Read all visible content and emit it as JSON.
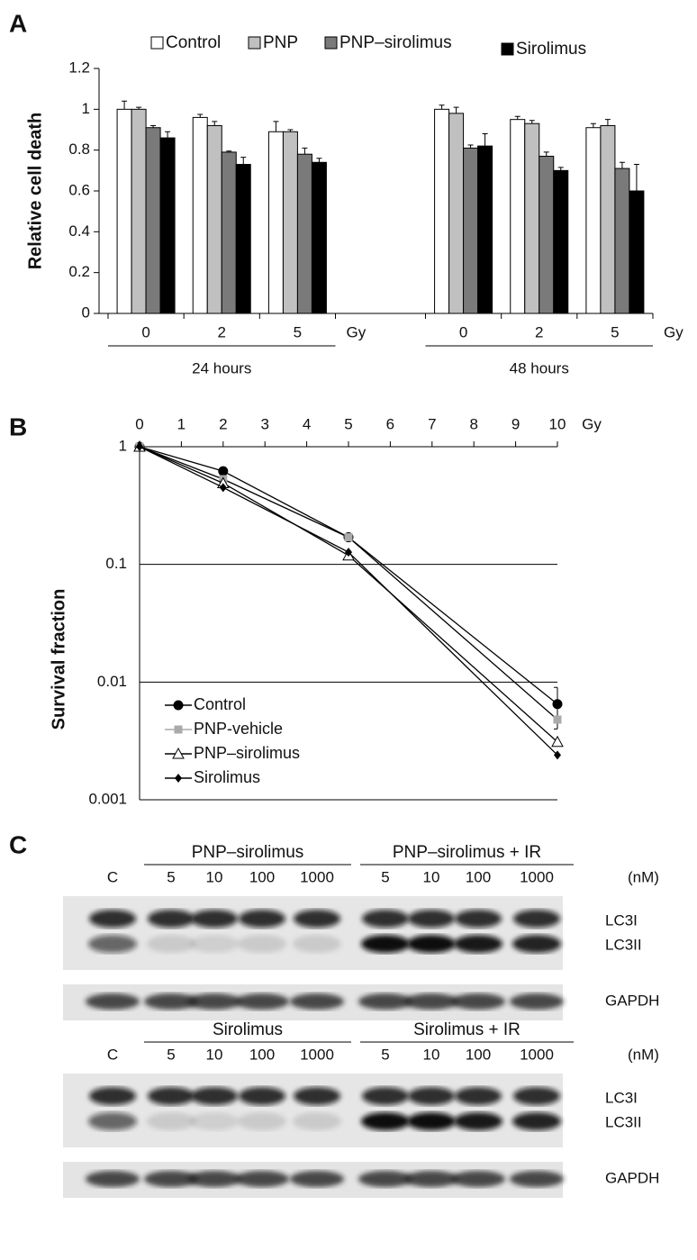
{
  "panel_labels": [
    "A",
    "B",
    "C"
  ],
  "chart_data": [
    {
      "type": "bar",
      "y_label": "Relative cell death",
      "categories": [
        "0",
        "2",
        "5",
        "0",
        "2",
        "5"
      ],
      "x_unit": "Gy",
      "groups": [
        "24 hours",
        "48 hours"
      ],
      "ylim": [
        0,
        1.2
      ],
      "yticks": [
        0,
        0.2,
        0.4,
        0.6,
        0.8,
        1,
        1.2
      ],
      "series": [
        {
          "name": "Control",
          "color": "#ffffff",
          "values": [
            1.0,
            0.96,
            0.89,
            1.0,
            0.95,
            0.91
          ],
          "errors": [
            0.04,
            0.015,
            0.05,
            0.02,
            0.015,
            0.02
          ]
        },
        {
          "name": "PNP",
          "color": "#c0c0c0",
          "values": [
            1.0,
            0.92,
            0.89,
            0.98,
            0.93,
            0.92
          ],
          "errors": [
            0.01,
            0.02,
            0.01,
            0.03,
            0.015,
            0.03
          ]
        },
        {
          "name": "PNP–sirolimus",
          "color": "#7a7a7a",
          "values": [
            0.91,
            0.79,
            0.78,
            0.81,
            0.77,
            0.71
          ],
          "errors": [
            0.01,
            0.005,
            0.03,
            0.015,
            0.02,
            0.03
          ]
        },
        {
          "name": "Sirolimus",
          "color": "#000000",
          "values": [
            0.86,
            0.73,
            0.74,
            0.82,
            0.7,
            0.6
          ],
          "errors": [
            0.03,
            0.035,
            0.02,
            0.06,
            0.015,
            0.13
          ]
        }
      ]
    },
    {
      "type": "line",
      "y_label": "Survival fraction",
      "x": [
        0,
        2,
        5,
        10
      ],
      "x_unit": "Gy",
      "xlim": [
        0,
        10
      ],
      "xticks": [
        0,
        1,
        2,
        3,
        4,
        5,
        6,
        7,
        8,
        9,
        10
      ],
      "ylim": [
        0.001,
        1
      ],
      "yticks": [
        0.001,
        0.01,
        0.1,
        1
      ],
      "log_y": true,
      "grid": true,
      "legend": "lower-left",
      "series": [
        {
          "name": "Control",
          "color": "#000000",
          "marker": "circle",
          "values": [
            1,
            0.62,
            0.17,
            0.0065
          ],
          "errors": [
            null,
            null,
            null,
            0.0025
          ]
        },
        {
          "name": "PNP-vehicle",
          "color": "#aaaaaa",
          "marker": "square",
          "values": [
            1,
            0.53,
            0.17,
            0.0048
          ]
        },
        {
          "name": "PNP–sirolimus",
          "color": "#ffffff",
          "marker": "triangle",
          "values": [
            1,
            0.49,
            0.119,
            0.0031
          ]
        },
        {
          "name": "Sirolimus",
          "color": "#000000",
          "marker": "diamond",
          "values": [
            1,
            0.45,
            0.127,
            0.0024
          ]
        }
      ]
    }
  ],
  "blots": [
    {
      "groups": [
        "PNP–sirolimus",
        "PNP–sirolimus + IR"
      ],
      "lanes": [
        "C",
        "5",
        "10",
        "100",
        "1000",
        "5",
        "10",
        "100",
        "1000"
      ],
      "unit": "(nM)",
      "bands": [
        "LC3I",
        "LC3II",
        "GAPDH"
      ]
    },
    {
      "groups": [
        "Sirolimus",
        "Sirolimus + IR"
      ],
      "lanes": [
        "C",
        "5",
        "10",
        "100",
        "1000",
        "5",
        "10",
        "100",
        "1000"
      ],
      "unit": "(nM)",
      "bands": [
        "LC3I",
        "LC3II",
        "GAPDH"
      ]
    }
  ]
}
